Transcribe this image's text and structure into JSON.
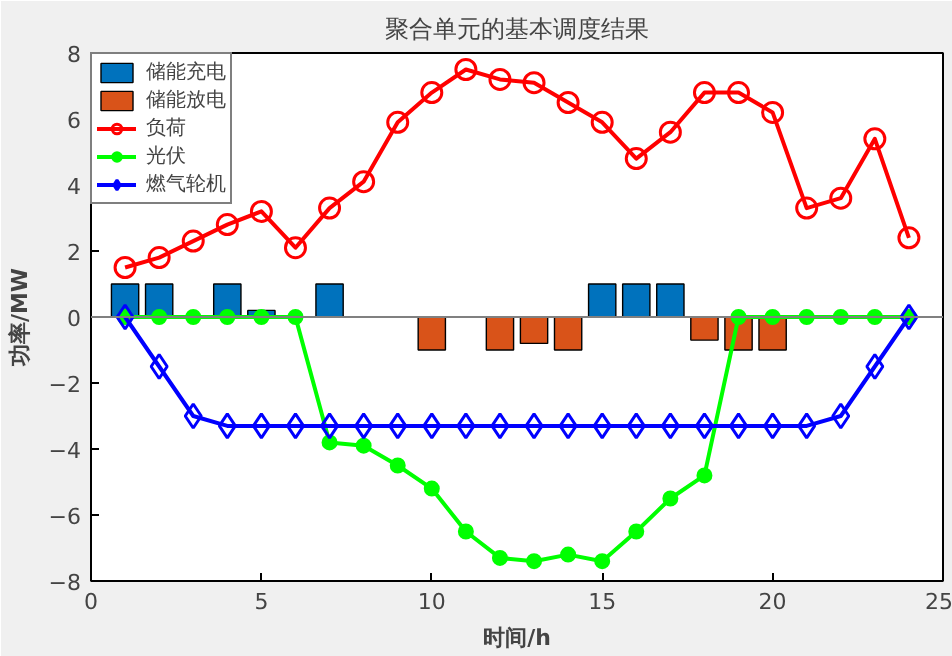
{
  "chart_data": {
    "type": "line",
    "title": "聚合单元的基本调度结果",
    "xlabel": "时间/h",
    "ylabel": "功率/MW",
    "x": [
      1,
      2,
      3,
      4,
      5,
      6,
      7,
      8,
      9,
      10,
      11,
      12,
      13,
      14,
      15,
      16,
      17,
      18,
      19,
      20,
      21,
      22,
      23,
      24
    ],
    "series": [
      {
        "name": "储能充电",
        "type": "bar",
        "color": "#0072bd",
        "values": [
          1.0,
          1.0,
          null,
          1.0,
          0.2,
          null,
          1.0,
          null,
          null,
          null,
          null,
          null,
          null,
          null,
          1.0,
          1.0,
          1.0,
          null,
          null,
          null,
          null,
          null,
          null,
          null
        ]
      },
      {
        "name": "储能放电",
        "type": "bar",
        "color": "#d95319",
        "values": [
          null,
          null,
          null,
          null,
          null,
          null,
          null,
          null,
          null,
          -1.0,
          null,
          -1.0,
          -0.8,
          -1.0,
          null,
          null,
          null,
          -0.7,
          -1.0,
          -1.0,
          null,
          null,
          null,
          null
        ]
      },
      {
        "name": "负荷",
        "color": "#ff0000",
        "marker": "circle",
        "values": [
          1.5,
          1.8,
          2.3,
          2.8,
          3.2,
          2.1,
          3.3,
          4.1,
          5.9,
          6.8,
          7.5,
          7.2,
          7.1,
          6.5,
          5.9,
          4.8,
          5.6,
          6.8,
          6.8,
          6.2,
          3.3,
          3.6,
          5.4,
          2.4
        ]
      },
      {
        "name": "光伏",
        "color": "#00ff00",
        "marker": "dot",
        "values": [
          0,
          0,
          0,
          0,
          0,
          0,
          -3.8,
          -3.9,
          -4.5,
          -5.2,
          -6.5,
          -7.3,
          -7.4,
          -7.2,
          -7.4,
          -6.5,
          -5.5,
          -4.8,
          0,
          0,
          0,
          0,
          0,
          0
        ]
      },
      {
        "name": "燃气轮机",
        "color": "#0000ff",
        "marker": "diamond",
        "values": [
          0,
          -1.5,
          -3.0,
          -3.3,
          -3.3,
          -3.3,
          -3.3,
          -3.3,
          -3.3,
          -3.3,
          -3.3,
          -3.3,
          -3.3,
          -3.3,
          -3.3,
          -3.3,
          -3.3,
          -3.3,
          -3.3,
          -3.3,
          -3.3,
          -3.0,
          -1.5,
          0
        ]
      }
    ],
    "xlim": [
      0,
      25
    ],
    "xticks": [
      0,
      5,
      10,
      15,
      20,
      25
    ],
    "ylim": [
      -8,
      8
    ],
    "yticks": [
      -8,
      -6,
      -4,
      -2,
      0,
      2,
      4,
      6,
      8
    ],
    "ref_lines": [
      {
        "axis": "y",
        "value": 0,
        "color": "#808080"
      }
    ],
    "legend": "top left",
    "grid": false
  }
}
